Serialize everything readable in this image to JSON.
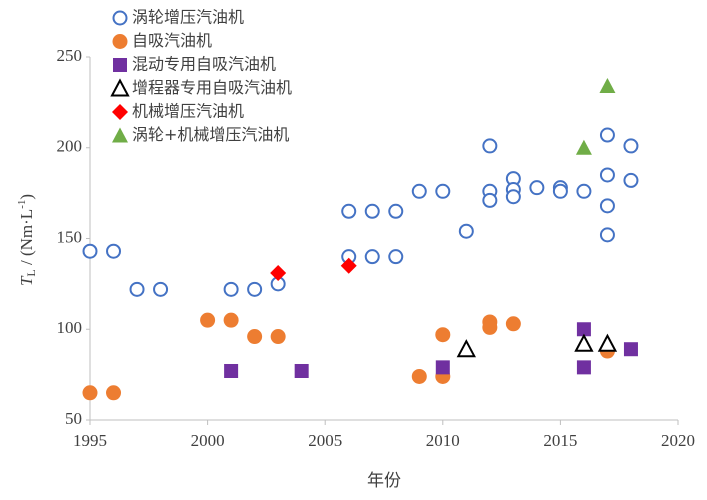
{
  "chart_data": {
    "type": "scatter",
    "xlabel": "年份",
    "ylabel_parts": [
      "T",
      "L",
      " / (Nm·L",
      "-1",
      ")"
    ],
    "xlim": [
      1995,
      2020
    ],
    "xticks": [
      1995,
      2000,
      2005,
      2010,
      2015,
      2020
    ],
    "ylim": [
      50,
      250
    ],
    "yticks": [
      50,
      100,
      150,
      200,
      250
    ],
    "grid": false,
    "legend": "upper left",
    "series": [
      {
        "name": "涡轮增压汽油机",
        "color": "#4472c4",
        "marker": "circle-open",
        "x": [
          1995,
          1996,
          1997,
          1998,
          2001,
          2002,
          2003,
          2006,
          2006,
          2007,
          2007,
          2008,
          2008,
          2009,
          2010,
          2011,
          2012,
          2012,
          2012,
          2013,
          2013,
          2013,
          2014,
          2015,
          2015,
          2016,
          2017,
          2017,
          2017,
          2017,
          2018,
          2018
        ],
        "values": [
          143,
          143,
          122,
          122,
          122,
          122,
          125,
          165,
          140,
          165,
          140,
          165,
          140,
          176,
          176,
          154,
          201,
          176,
          171,
          183,
          177,
          173,
          178,
          178,
          176,
          176,
          207,
          185,
          168,
          152,
          201,
          182
        ]
      },
      {
        "name": "自吸汽油机",
        "color": "#ed7d31",
        "marker": "circle",
        "x": [
          1995,
          1996,
          2000,
          2001,
          2002,
          2003,
          2009,
          2010,
          2010,
          2012,
          2012,
          2013,
          2017
        ],
        "values": [
          65,
          65,
          105,
          105,
          96,
          96,
          74,
          97,
          74,
          104,
          101,
          103,
          88
        ]
      },
      {
        "name": "混动专用自吸汽油机",
        "color": "#7030a0",
        "marker": "square",
        "x": [
          2001,
          2004,
          2010,
          2016,
          2016,
          2018
        ],
        "values": [
          77,
          77,
          79,
          100,
          79,
          89
        ]
      },
      {
        "name": "增程器专用自吸汽油机",
        "color": "#000000",
        "marker": "triangle-open",
        "x": [
          2011,
          2016,
          2017
        ],
        "values": [
          89,
          92,
          92
        ]
      },
      {
        "name": "机械增压汽油机",
        "color": "#ff0000",
        "marker": "diamond",
        "x": [
          2003,
          2006
        ],
        "values": [
          131,
          135
        ]
      },
      {
        "name": "涡轮+机械增压汽油机",
        "color": "#70ad47",
        "marker": "triangle",
        "x": [
          2016,
          2017
        ],
        "values": [
          200,
          234
        ]
      }
    ]
  }
}
